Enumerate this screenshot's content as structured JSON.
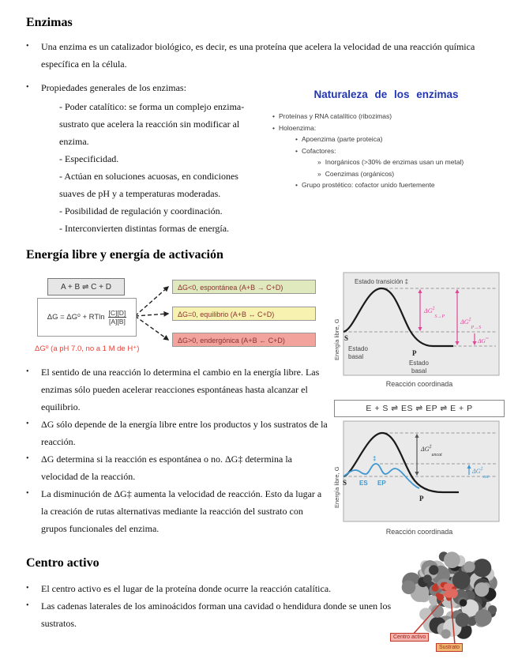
{
  "document": {
    "title": "Enzimas",
    "section2_title": "Energía libre y energía de activación",
    "section3_title": "Centro activo"
  },
  "intro": {
    "bullet1": "Una enzima es un catalizador biológico, es decir, es una proteína que acelera la velocidad de una reacción química específica en la célula.",
    "bullet2": "Propiedades generales de los enzimas:",
    "properties": [
      "- Poder catalítico: se forma un complejo enzima-sustrato que acelera la reacción sin modificar al enzima.",
      "- Especificidad.",
      "- Actúan en soluciones acuosas, en condiciones suaves de pH y a temperaturas moderadas.",
      "- Posibilidad de regulación y coordinación.",
      "- Interconvierten distintas formas de energía."
    ]
  },
  "slide": {
    "title": "Naturaleza de los enzimas",
    "items": [
      "Proteínas y RNA catalítico (ribozimas)",
      "Holoenzima:",
      "Apoenzima (parte proteica)",
      "Cofactores:",
      "Inorgánicos (>30% de enzimas usan un metal)",
      "Coenzimas (orgánicos)",
      "Grupo prostético: cofactor unido fuertemente"
    ]
  },
  "free_energy": {
    "reaction_equation": "A + B  ⇌  C + D",
    "gibbs_equation": "ΔG = ΔG⁰ + RTln",
    "fraction_numerator": "[C][D]",
    "fraction_denominator": "[A][B]",
    "note": "ΔG⁰ (a pH 7.0, no a 1 M de H⁺)",
    "outcomes": [
      {
        "label": "ΔG<0, espontánea (A+B → C+D)",
        "style": "background:#dfe9bd"
      },
      {
        "label": "ΔG=0, equilibrio (A+B ↔ C+D)",
        "style": "background:#f7f2b0"
      },
      {
        "label": "ΔG>0, endergónica (A+B ← C+D)",
        "style": "background:#f2a39c"
      }
    ],
    "bullets": [
      "El sentido de una reacción lo determina el cambio en la energía libre. Las enzimas sólo pueden acelerar reacciones espontáneas hasta alcanzar el equilibrio.",
      "ΔG sólo depende de la energía libre entre los productos y los sustratos de la reacción.",
      "ΔG determina si la reacción es espontánea o no. ΔG‡ determina la velocidad de la reacción.",
      "La disminución de ΔG‡ aumenta la velocidad de reacción. Esto da lugar a la creación de rutas alternativas mediante la reacción del sustrato con grupos funcionales del enzima."
    ]
  },
  "chart1": {
    "ylabel": "Energía libre, G",
    "xlabel": "Reacción coordinada",
    "transition_label": "Estado transición ‡",
    "s_label": "S",
    "p_label": "P",
    "basal_word1": "Estado",
    "basal_word2": "basal",
    "ann_sp": {
      "base": "ΔG",
      "sup": "‡",
      "sub": "S→P"
    },
    "ann_ps": {
      "base": "ΔG",
      "sup": "‡",
      "sub": "P→S"
    },
    "ann_net": {
      "base": "ΔG",
      "sup": "′°"
    }
  },
  "chart2": {
    "equation": "E + S  ⇌  ES  ⇌  EP  ⇌  E + P",
    "ylabel": "Energía libre, G",
    "xlabel": "Reacción coordinada",
    "s_label": "S",
    "p_label": "P",
    "es_label": "ES",
    "ep_label": "EP",
    "ddagger": "‡",
    "ann_uncat": {
      "base": "ΔG",
      "sup": "‡",
      "sub": "uncat"
    },
    "ann_cat": {
      "base": "ΔG",
      "sup": "‡",
      "sub": "cat"
    }
  },
  "active_site": {
    "bullets": [
      "El centro activo es el lugar de la proteína donde ocurre la reacción catalítica.",
      "Las cadenas laterales de los aminoácidos forman una cavidad o hendidura donde se unen los sustratos."
    ],
    "label_centro": "Centro activo",
    "label_sustrato": "Sustrato"
  },
  "colors": {
    "slide_heading_blue": "#2236b2",
    "note_red": "#e8433a",
    "annotation_pink": "#e0459a",
    "catalyzed_blue": "#3f97d0",
    "outcome_green": "#dfe9bd",
    "outcome_yellow": "#f7f2b0",
    "outcome_red": "#f2a39c",
    "pointer_red": "#c0392b"
  }
}
